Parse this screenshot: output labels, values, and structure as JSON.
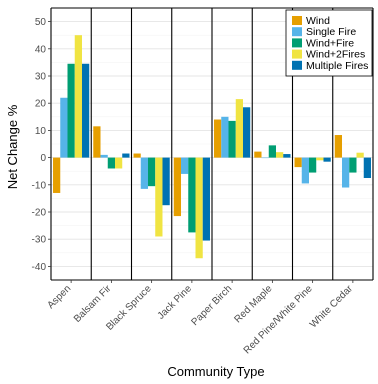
{
  "chart_data": {
    "type": "bar",
    "title": "",
    "xlabel": "Community Type",
    "ylabel": "Net Change %",
    "ylim": [
      -45,
      55
    ],
    "yticks": [
      -40,
      -30,
      -20,
      -10,
      0,
      10,
      20,
      30,
      40,
      50
    ],
    "grid": true,
    "legend_position": "top-right",
    "categories": [
      "Aspen",
      "Balsam Fir",
      "Black Spruce",
      "Jack Pine",
      "Paper Birch",
      "Red Maple",
      "Red Pine/White Pine",
      "White Cedar"
    ],
    "series": [
      {
        "name": "Wind",
        "color": "#E69F00",
        "values": [
          -13,
          11.5,
          1.5,
          -21.5,
          14,
          2.2,
          -3.5,
          8.3
        ]
      },
      {
        "name": "Single Fire",
        "color": "#56B4E9",
        "values": [
          22,
          1,
          -11.5,
          -6,
          15,
          0,
          -9.5,
          -11
        ]
      },
      {
        "name": "Wind+Fire",
        "color": "#009E73",
        "values": [
          34.5,
          -4,
          -10.5,
          -27.5,
          13.5,
          4.5,
          -5.5,
          -5.5
        ]
      },
      {
        "name": "Wind+2Fires",
        "color": "#F0E442",
        "values": [
          45,
          -4,
          -29,
          -37,
          21.5,
          2,
          -1,
          1.8
        ]
      },
      {
        "name": "Multiple Fires",
        "color": "#0072B2",
        "values": [
          34.5,
          1.5,
          -17.5,
          -30.5,
          18.5,
          1.3,
          -1.5,
          -7.5
        ]
      }
    ]
  }
}
